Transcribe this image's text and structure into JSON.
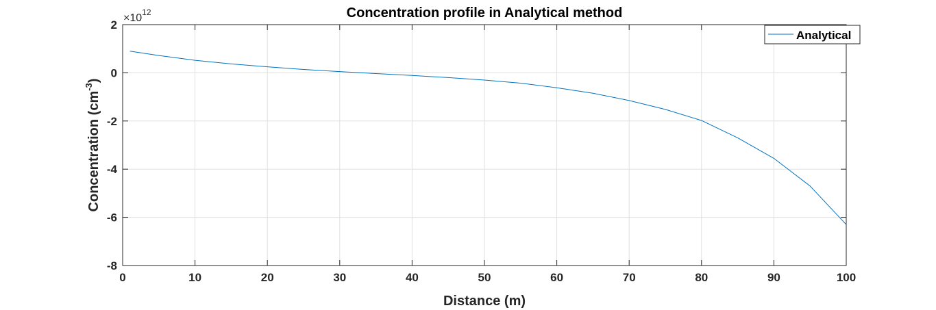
{
  "chart_data": {
    "type": "line",
    "title": "Concentration profile in Analytical method",
    "xlabel": "Distance (m)",
    "ylabel": {
      "base": "Concentration (cm",
      "sup": "-3",
      "close": ")"
    },
    "y_exponent": {
      "times": "×10",
      "power": "12"
    },
    "xlim": [
      0,
      100
    ],
    "ylim": [
      -8,
      2
    ],
    "x_ticks": [
      "0",
      "10",
      "20",
      "30",
      "40",
      "50",
      "60",
      "70",
      "80",
      "90",
      "100"
    ],
    "y_ticks": [
      "2",
      "0",
      "-2",
      "-4",
      "-6",
      "-8"
    ],
    "x_tick_values": [
      0,
      10,
      20,
      30,
      40,
      50,
      60,
      70,
      80,
      90,
      100
    ],
    "y_tick_values": [
      2,
      0,
      -2,
      -4,
      -6,
      -8
    ],
    "grid": true,
    "legend_position": "top-right",
    "series": [
      {
        "name": "Analytical",
        "color": "#0072BD",
        "x": [
          1,
          5,
          10,
          15,
          20,
          25,
          30,
          35,
          40,
          45,
          50,
          55,
          60,
          65,
          70,
          75,
          80,
          85,
          90,
          95,
          100
        ],
        "y": [
          0.9,
          0.72,
          0.52,
          0.37,
          0.25,
          0.14,
          0.05,
          -0.03,
          -0.11,
          -0.2,
          -0.3,
          -0.43,
          -0.62,
          -0.85,
          -1.15,
          -1.52,
          -1.98,
          -2.7,
          -3.55,
          -4.7,
          -6.3
        ]
      }
    ]
  }
}
